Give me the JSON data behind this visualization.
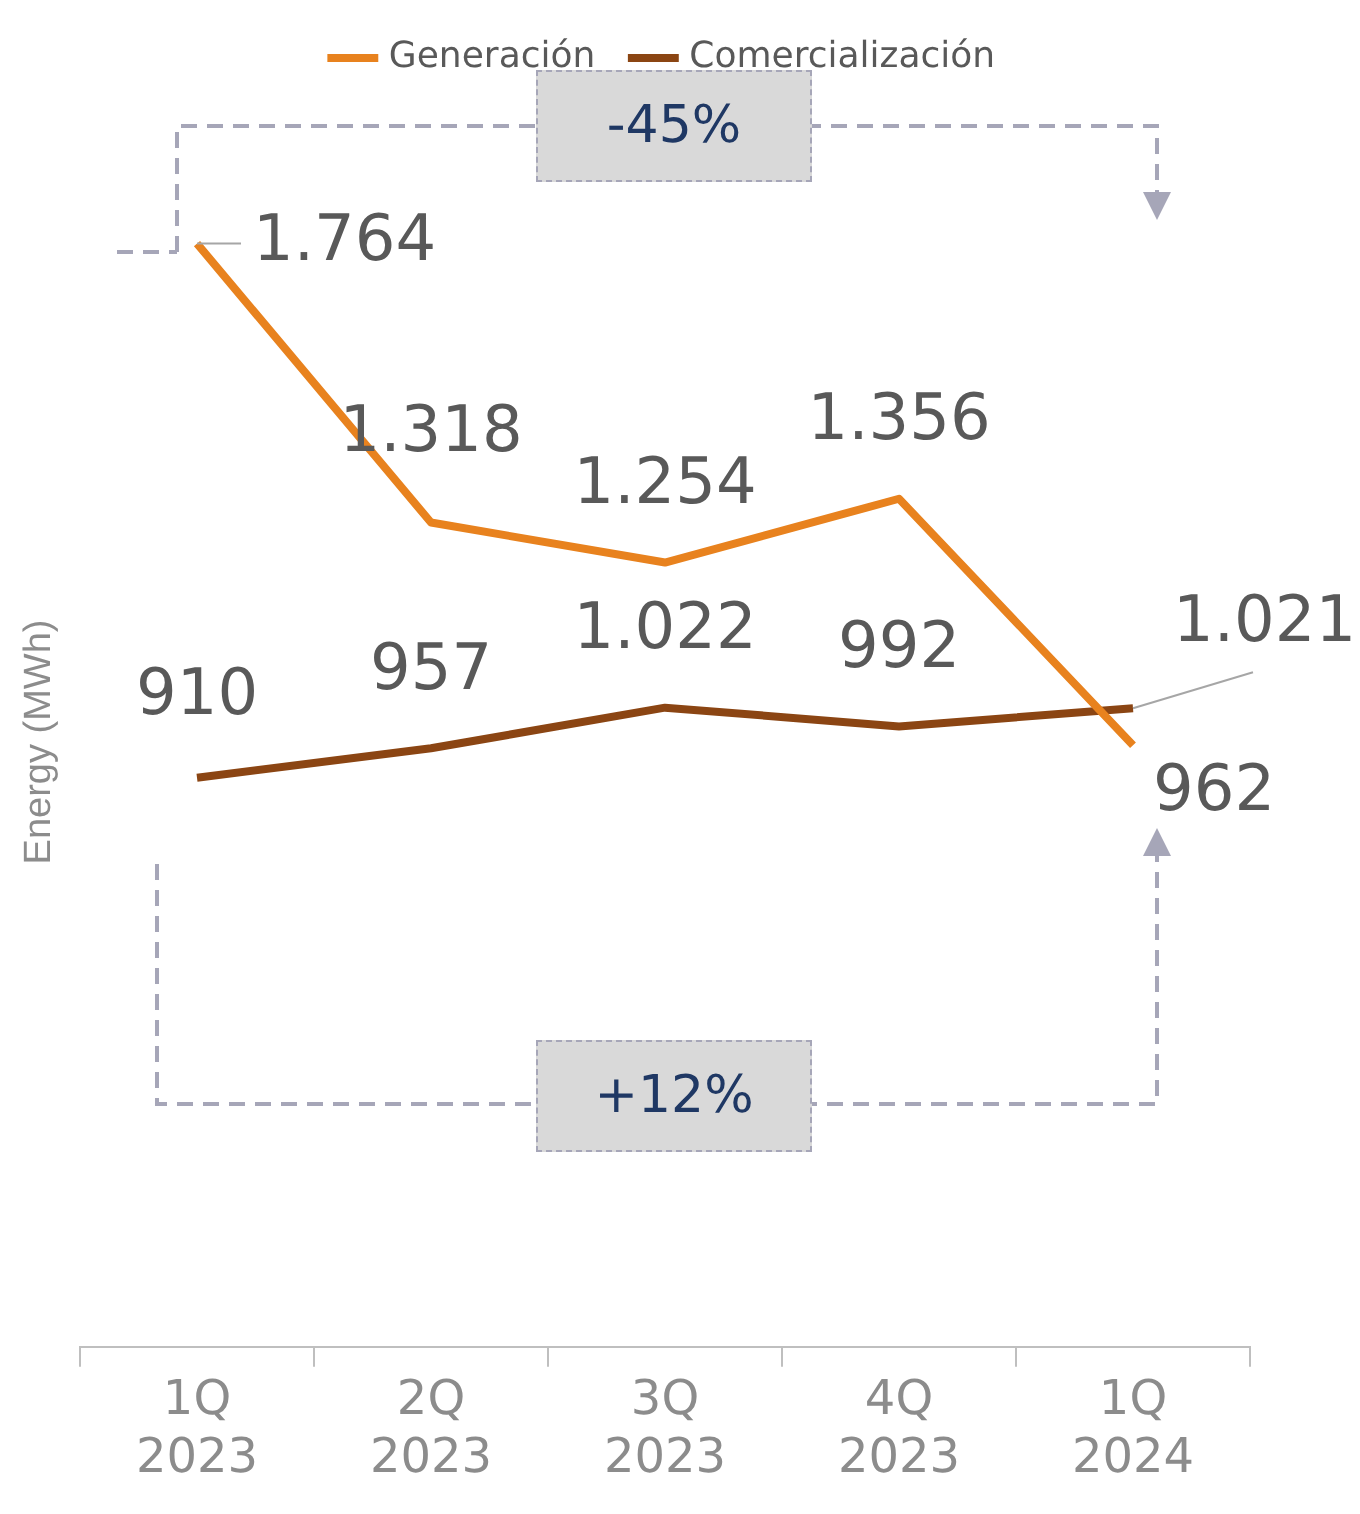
{
  "chart_data": {
    "type": "line",
    "ylabel": "Energy (MWh)",
    "categories": [
      "1Q 2023",
      "2Q 2023",
      "3Q 2023",
      "4Q 2023",
      "1Q 2024"
    ],
    "series": [
      {
        "name": "Generación",
        "color": "#e8821e",
        "values": [
          1764,
          1318,
          1254,
          1356,
          962
        ],
        "value_labels": [
          "1.764",
          "1.318",
          "1.254",
          "1.356",
          "962"
        ]
      },
      {
        "name": "Comercialización",
        "color": "#8b4513",
        "values": [
          910,
          957,
          1022,
          992,
          1021
        ],
        "value_labels": [
          "910",
          "957",
          "1.022",
          "992",
          "1.021"
        ]
      }
    ],
    "tick_labels": "x",
    "grid": false,
    "legend": "top",
    "marker": "none",
    "line_style": "solid",
    "annotations": [
      "-45%",
      "+12%"
    ]
  }
}
